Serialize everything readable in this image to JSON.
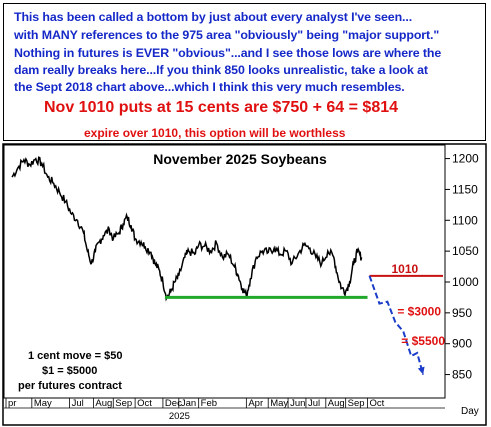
{
  "header": {
    "lines": [
      "This has been called a bottom by just about every analyst I've seen...",
      "with MANY references to the 975 area \"obviously\" being \"major support.\"",
      "Nothing in futures is EVER \"obvious\"...and I see those lows are where the",
      "dam really breaks here...If you think 850 looks unrealistic, take a look at",
      "the Sept 2018 chart above...which I think this very much resembles."
    ],
    "puts_line": "Nov 1010 puts at 15 cents are $750 + 64 = $814",
    "expire_line": "expire over 1010, this option will be worthless"
  },
  "colors": {
    "header_text": "#1528c8",
    "alert_text": "#e01010",
    "price_line": "#000000",
    "support_line": "#1fa82a",
    "strike_line": "#c81010",
    "projection": "#1a3cc8"
  },
  "chart_data": {
    "type": "line",
    "title": "November 2025 Soybeans",
    "xlabel": "",
    "ylabel": "",
    "y_unit_label": "Day",
    "ylim": [
      812,
      1222
    ],
    "y_ticks": [
      850,
      900,
      950,
      1000,
      1050,
      1100,
      1150,
      1200
    ],
    "x_range": [
      0,
      22
    ],
    "x_ticks": [
      {
        "x": 0.0,
        "label": "pr"
      },
      {
        "x": 1.3,
        "label": "May"
      },
      {
        "x": 3.2,
        "label": "Jul"
      },
      {
        "x": 4.4,
        "label": "Aug"
      },
      {
        "x": 5.4,
        "label": "Sep"
      },
      {
        "x": 6.5,
        "label": "Oct"
      },
      {
        "x": 7.9,
        "label": "Dec"
      },
      {
        "x": 8.7,
        "label": "Jan"
      },
      {
        "x": 9.7,
        "label": "Feb"
      },
      {
        "x": 12.1,
        "label": "Apr"
      },
      {
        "x": 13.2,
        "label": "May"
      },
      {
        "x": 14.2,
        "label": "Jun"
      },
      {
        "x": 15.1,
        "label": "Jul"
      },
      {
        "x": 16.1,
        "label": "Aug"
      },
      {
        "x": 17.1,
        "label": "Sep"
      },
      {
        "x": 18.2,
        "label": "Oct"
      }
    ],
    "year_label": {
      "x": 8.7,
      "label": "2025"
    },
    "series": [
      {
        "values": [
          [
            0.3,
            1170
          ],
          [
            0.6,
            1185
          ],
          [
            0.9,
            1198
          ],
          [
            1.2,
            1190
          ],
          [
            1.5,
            1200
          ],
          [
            1.8,
            1192
          ],
          [
            2.1,
            1170
          ],
          [
            2.4,
            1160
          ],
          [
            2.7,
            1145
          ],
          [
            3.0,
            1130
          ],
          [
            3.3,
            1110
          ],
          [
            3.6,
            1100
          ],
          [
            3.9,
            1080
          ],
          [
            4.1,
            1050
          ],
          [
            4.3,
            1030
          ],
          [
            4.5,
            1050
          ],
          [
            4.7,
            1065
          ],
          [
            4.9,
            1075
          ],
          [
            5.2,
            1085
          ],
          [
            5.4,
            1070
          ],
          [
            5.7,
            1080
          ],
          [
            5.9,
            1095
          ],
          [
            6.1,
            1105
          ],
          [
            6.3,
            1092
          ],
          [
            6.5,
            1070
          ],
          [
            6.8,
            1065
          ],
          [
            7.0,
            1058
          ],
          [
            7.3,
            1048
          ],
          [
            7.5,
            1030
          ],
          [
            7.7,
            1020
          ],
          [
            7.9,
            1000
          ],
          [
            8.1,
            975
          ],
          [
            8.3,
            985
          ],
          [
            8.5,
            1000
          ],
          [
            8.7,
            1010
          ],
          [
            9.0,
            1040
          ],
          [
            9.2,
            1050
          ],
          [
            9.5,
            1045
          ],
          [
            9.7,
            1060
          ],
          [
            10.0,
            1058
          ],
          [
            10.3,
            1050
          ],
          [
            10.6,
            1063
          ],
          [
            10.9,
            1040
          ],
          [
            11.2,
            1045
          ],
          [
            11.5,
            1025
          ],
          [
            11.7,
            1010
          ],
          [
            11.9,
            990
          ],
          [
            12.1,
            978
          ],
          [
            12.3,
            1005
          ],
          [
            12.6,
            1040
          ],
          [
            12.9,
            1050
          ],
          [
            13.2,
            1048
          ],
          [
            13.5,
            1055
          ],
          [
            13.8,
            1045
          ],
          [
            14.1,
            1050
          ],
          [
            14.4,
            1030
          ],
          [
            14.7,
            1045
          ],
          [
            15.0,
            1060
          ],
          [
            15.3,
            1055
          ],
          [
            15.6,
            1040
          ],
          [
            15.9,
            1030
          ],
          [
            16.2,
            1050
          ],
          [
            16.5,
            1040
          ],
          [
            16.7,
            1010
          ],
          [
            16.9,
            990
          ],
          [
            17.1,
            985
          ],
          [
            17.3,
            1000
          ],
          [
            17.5,
            1030
          ],
          [
            17.7,
            1050
          ],
          [
            17.9,
            1040
          ]
        ]
      }
    ],
    "support_line": {
      "value": 975,
      "x_start": 8.0,
      "x_end": 18.2
    },
    "strike_line": {
      "value": 1010,
      "label": "1010",
      "x_start": 18.3,
      "x_end": 22.0
    },
    "projection": [
      [
        18.3,
        1010
      ],
      [
        18.8,
        965
      ],
      [
        19.2,
        968
      ],
      [
        19.6,
        935
      ],
      [
        20.0,
        920
      ],
      [
        20.4,
        880
      ],
      [
        20.7,
        885
      ],
      [
        21.0,
        850
      ]
    ],
    "annotations": [
      {
        "text": "= $3000",
        "x": 19.7,
        "y": 946
      },
      {
        "text": "= $5500",
        "x": 19.9,
        "y": 898
      }
    ],
    "note_lines": [
      "1 cent move = $50",
      "$1 = $5000",
      "per futures contract"
    ],
    "grid": false
  }
}
